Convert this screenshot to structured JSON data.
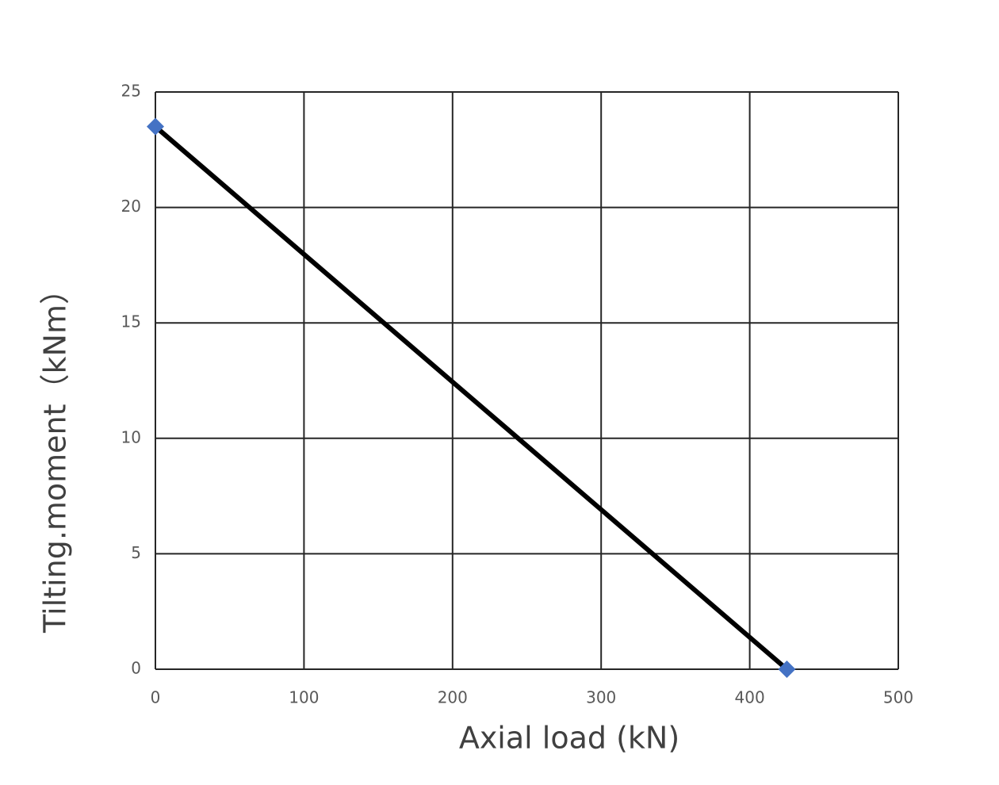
{
  "chart_data": {
    "type": "line",
    "x_label": "Axial load (kN)",
    "y_label": "Tilting.moment（kNm）",
    "x": [
      0,
      425
    ],
    "series": [
      {
        "values": [
          23.5,
          0
        ],
        "color": "#000000",
        "marker_color": "#4472c4"
      }
    ],
    "xlim": [
      0,
      500
    ],
    "xticks": [
      0,
      100,
      200,
      300,
      400,
      500
    ],
    "ylim": [
      0,
      25
    ],
    "yticks": [
      0,
      5,
      10,
      15,
      20,
      25
    ],
    "grid": true
  }
}
